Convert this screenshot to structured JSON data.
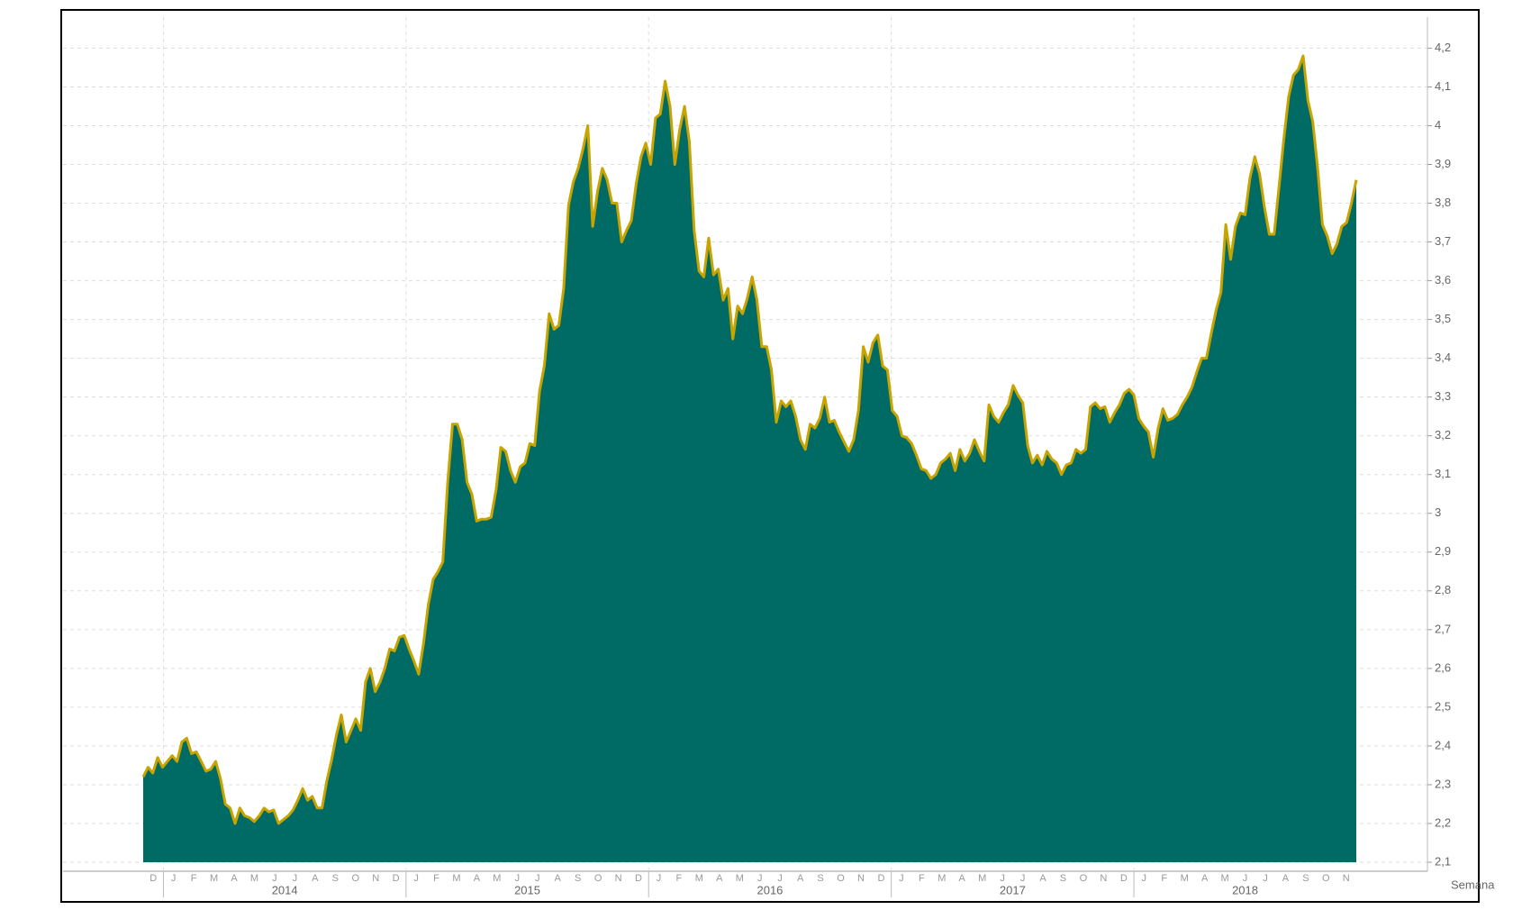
{
  "chart_data": {
    "type": "area",
    "x_axis_title": "Semana",
    "color": "#006b64",
    "line_color": "#c8a400",
    "grid": true,
    "ylim": [
      2.1,
      4.28
    ],
    "yticks": [
      {
        "value": 2.1,
        "label": "2,1"
      },
      {
        "value": 2.2,
        "label": "2,2"
      },
      {
        "value": 2.3,
        "label": "2,3"
      },
      {
        "value": 2.4,
        "label": "2,4"
      },
      {
        "value": 2.5,
        "label": "2,5"
      },
      {
        "value": 2.6,
        "label": "2,6"
      },
      {
        "value": 2.7,
        "label": "2,7"
      },
      {
        "value": 2.8,
        "label": "2,8"
      },
      {
        "value": 2.9,
        "label": "2,9"
      },
      3,
      {
        "value": 3.1,
        "label": "3,1"
      },
      {
        "value": 3.2,
        "label": "3,2"
      },
      {
        "value": 3.3,
        "label": "3,3"
      },
      {
        "value": 3.4,
        "label": "3,4"
      },
      {
        "value": 3.5,
        "label": "3,5"
      },
      {
        "value": 3.6,
        "label": "3,6"
      },
      {
        "value": 3.7,
        "label": "3,7"
      },
      {
        "value": 3.8,
        "label": "3,8"
      },
      {
        "value": 3.9,
        "label": "3,9"
      },
      4,
      {
        "value": 4.1,
        "label": "4,1"
      },
      {
        "value": 4.2,
        "label": "4,2"
      }
    ],
    "x_month_labels": [
      "D",
      "J",
      "F",
      "M",
      "A",
      "M",
      "J",
      "J",
      "A",
      "S",
      "O",
      "N",
      "D",
      "J",
      "F",
      "M",
      "A",
      "M",
      "J",
      "J",
      "A",
      "S",
      "O",
      "N",
      "D",
      "J",
      "F",
      "M",
      "A",
      "M",
      "J",
      "J",
      "A",
      "S",
      "O",
      "N",
      "D",
      "J",
      "F",
      "M",
      "A",
      "M",
      "J",
      "J",
      "A",
      "S",
      "O",
      "N",
      "D",
      "J",
      "F",
      "M",
      "A",
      "M",
      "J",
      "J",
      "A",
      "S",
      "O",
      "N"
    ],
    "x_year_labels": [
      "2014",
      "2015",
      "2016",
      "2017",
      "2018"
    ],
    "values": [
      2.32,
      2.345,
      2.33,
      2.37,
      2.345,
      2.36,
      2.375,
      2.36,
      2.41,
      2.42,
      2.38,
      2.385,
      2.36,
      2.335,
      2.34,
      2.36,
      2.315,
      2.25,
      2.24,
      2.2,
      2.24,
      2.22,
      2.215,
      2.205,
      2.22,
      2.24,
      2.23,
      2.235,
      2.2,
      2.21,
      2.22,
      2.235,
      2.26,
      2.29,
      2.26,
      2.27,
      2.24,
      2.24,
      2.31,
      2.365,
      2.43,
      2.48,
      2.41,
      2.44,
      2.47,
      2.44,
      2.565,
      2.6,
      2.54,
      2.565,
      2.6,
      2.65,
      2.645,
      2.68,
      2.685,
      2.65,
      2.62,
      2.585,
      2.665,
      2.765,
      2.83,
      2.85,
      2.875,
      3.08,
      3.23,
      3.23,
      3.19,
      3.08,
      3.05,
      2.98,
      2.985,
      2.985,
      2.99,
      3.06,
      3.17,
      3.16,
      3.11,
      3.08,
      3.12,
      3.13,
      3.18,
      3.175,
      3.315,
      3.38,
      3.515,
      3.475,
      3.485,
      3.58,
      3.795,
      3.855,
      3.89,
      3.94,
      4.0,
      3.74,
      3.83,
      3.89,
      3.86,
      3.8,
      3.8,
      3.7,
      3.73,
      3.755,
      3.85,
      3.92,
      3.955,
      3.9,
      4.02,
      4.03,
      4.115,
      4.05,
      3.9,
      3.99,
      4.05,
      3.96,
      3.73,
      3.625,
      3.61,
      3.71,
      3.615,
      3.63,
      3.55,
      3.58,
      3.45,
      3.535,
      3.515,
      3.555,
      3.61,
      3.55,
      3.43,
      3.43,
      3.37,
      3.235,
      3.29,
      3.275,
      3.29,
      3.25,
      3.19,
      3.165,
      3.23,
      3.22,
      3.245,
      3.3,
      3.235,
      3.24,
      3.21,
      3.185,
      3.16,
      3.19,
      3.265,
      3.43,
      3.39,
      3.44,
      3.46,
      3.38,
      3.37,
      3.265,
      3.25,
      3.2,
      3.195,
      3.18,
      3.15,
      3.115,
      3.11,
      3.09,
      3.1,
      3.13,
      3.14,
      3.155,
      3.11,
      3.165,
      3.135,
      3.155,
      3.19,
      3.16,
      3.135,
      3.28,
      3.25,
      3.235,
      3.26,
      3.28,
      3.33,
      3.305,
      3.285,
      3.175,
      3.13,
      3.15,
      3.125,
      3.16,
      3.14,
      3.13,
      3.1,
      3.125,
      3.13,
      3.165,
      3.155,
      3.165,
      3.275,
      3.285,
      3.27,
      3.275,
      3.235,
      3.26,
      3.28,
      3.31,
      3.32,
      3.305,
      3.245,
      3.225,
      3.21,
      3.145,
      3.22,
      3.27,
      3.24,
      3.245,
      3.255,
      3.28,
      3.3,
      3.325,
      3.365,
      3.4,
      3.4,
      3.465,
      3.525,
      3.57,
      3.745,
      3.655,
      3.74,
      3.775,
      3.77,
      3.865,
      3.92,
      3.875,
      3.79,
      3.72,
      3.72,
      3.84,
      3.965,
      4.075,
      4.13,
      4.145,
      4.18,
      4.065,
      4.01,
      3.89,
      3.745,
      3.715,
      3.67,
      3.695,
      3.74,
      3.75,
      3.8,
      3.86
    ]
  }
}
